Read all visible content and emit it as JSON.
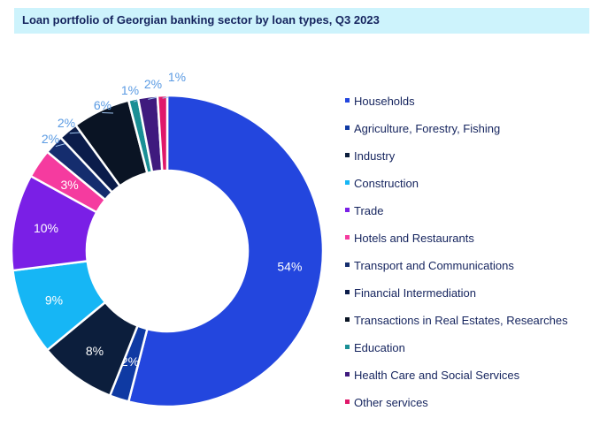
{
  "title": "Loan portfolio of Georgian banking sector by loan types, Q3 2023",
  "chart_data": {
    "type": "pie",
    "donut": true,
    "legend_position": "right",
    "series": [
      {
        "name": "Households",
        "value": 54,
        "label": "54%",
        "color": "#2346de",
        "label_placement": "inside",
        "label_color": "#ffffff"
      },
      {
        "name": "Agriculture, Forestry, Fishing",
        "value": 2,
        "label": "2%",
        "color": "#0f3aa3",
        "label_placement": "inside",
        "label_color": "#ffffff"
      },
      {
        "name": "Industry",
        "value": 8,
        "label": "8%",
        "color": "#0c1e3c",
        "label_placement": "inside",
        "label_color": "#ffffff"
      },
      {
        "name": "Construction",
        "value": 9,
        "label": "9%",
        "color": "#16b6f5",
        "label_placement": "inside",
        "label_color": "#ffffff"
      },
      {
        "name": "Trade",
        "value": 10,
        "label": "10%",
        "color": "#7a1fe6",
        "label_placement": "inside",
        "label_color": "#ffffff"
      },
      {
        "name": "Hotels and Restaurants",
        "value": 3,
        "label": "3%",
        "color": "#f53b9f",
        "label_placement": "inside",
        "label_color": "#ffffff"
      },
      {
        "name": "Transport and Communications",
        "value": 2,
        "label": "2%",
        "color": "#152d6e",
        "label_placement": "outside",
        "label_color": "#5b9be3"
      },
      {
        "name": "Financial Intermediation",
        "value": 2,
        "label": "2%",
        "color": "#0b1c4a",
        "label_placement": "outside",
        "label_color": "#5b9be3"
      },
      {
        "name": "Transactions in Real Estates, Researches",
        "value": 6,
        "label": "6%",
        "color": "#0a1424",
        "label_placement": "outside",
        "label_color": "#5b9be3"
      },
      {
        "name": "Education",
        "value": 1,
        "label": "1%",
        "color": "#1a8f95",
        "label_placement": "outside",
        "label_color": "#5b9be3"
      },
      {
        "name": "Health Care and Social Services",
        "value": 2,
        "label": "2%",
        "color": "#3f1a7e",
        "label_placement": "outside",
        "label_color": "#5b9be3"
      },
      {
        "name": "Other services",
        "value": 1,
        "label": "1%",
        "color": "#e0186a",
        "label_placement": "outside",
        "label_color": "#5b9be3"
      }
    ]
  }
}
